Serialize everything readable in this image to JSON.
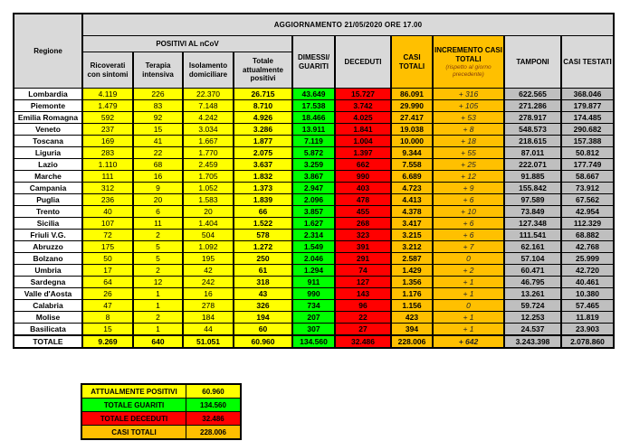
{
  "title": "AGGIORNAMENTO 21/05/2020 ORE 17.00",
  "header": {
    "corner": "Regione",
    "group": "POSITIVI AL nCoV",
    "cols": {
      "ricoverati": "Ricoverati con sintomi",
      "terapia": "Terapia intensiva",
      "isolamento": "Isolamento domiciliare",
      "totale_positivi": "Totale attualmente positivi",
      "dimessi": "DIMESSI/ GUARITI",
      "deceduti": "DECEDUTI",
      "casi_totali": "CASI TOTALI",
      "incremento": "INCREMENTO CASI TOTALI",
      "incremento_note": "(rispetto al giorno precedente)",
      "tamponi": "TAMPONI",
      "casi_testati": "CASI TESTATI"
    }
  },
  "chart_data": {
    "type": "table",
    "title": "AGGIORNAMENTO 21/05/2020 ORE 17.00",
    "columns": [
      "Regione",
      "Ricoverati con sintomi",
      "Terapia intensiva",
      "Isolamento domiciliare",
      "Totale attualmente positivi",
      "DIMESSI/GUARITI",
      "DECEDUTI",
      "CASI TOTALI",
      "INCREMENTO CASI TOTALI (rispetto al giorno precedente)",
      "TAMPONI",
      "CASI TESTATI"
    ],
    "rows": [
      {
        "name": "Lombardia",
        "ricoverati": "4.119",
        "terapia": "226",
        "isolamento": "22.370",
        "totale_positivi": "26.715",
        "dimessi": "43.649",
        "deceduti": "15.727",
        "casi_totali": "86.091",
        "incremento": "+ 316",
        "tamponi": "622.565",
        "casi_testati": "368.046"
      },
      {
        "name": "Piemonte",
        "ricoverati": "1.479",
        "terapia": "83",
        "isolamento": "7.148",
        "totale_positivi": "8.710",
        "dimessi": "17.538",
        "deceduti": "3.742",
        "casi_totali": "29.990",
        "incremento": "+ 105",
        "tamponi": "271.286",
        "casi_testati": "179.877"
      },
      {
        "name": "Emilia Romagna",
        "ricoverati": "592",
        "terapia": "92",
        "isolamento": "4.242",
        "totale_positivi": "4.926",
        "dimessi": "18.466",
        "deceduti": "4.025",
        "casi_totali": "27.417",
        "incremento": "+ 53",
        "tamponi": "278.917",
        "casi_testati": "174.485"
      },
      {
        "name": "Veneto",
        "ricoverati": "237",
        "terapia": "15",
        "isolamento": "3.034",
        "totale_positivi": "3.286",
        "dimessi": "13.911",
        "deceduti": "1.841",
        "casi_totali": "19.038",
        "incremento": "+ 8",
        "tamponi": "548.573",
        "casi_testati": "290.682"
      },
      {
        "name": "Toscana",
        "ricoverati": "169",
        "terapia": "41",
        "isolamento": "1.667",
        "totale_positivi": "1.877",
        "dimessi": "7.119",
        "deceduti": "1.004",
        "casi_totali": "10.000",
        "incremento": "+ 18",
        "tamponi": "218.615",
        "casi_testati": "157.388"
      },
      {
        "name": "Liguria",
        "ricoverati": "283",
        "terapia": "22",
        "isolamento": "1.770",
        "totale_positivi": "2.075",
        "dimessi": "5.872",
        "deceduti": "1.397",
        "casi_totali": "9.344",
        "incremento": "+ 55",
        "tamponi": "87.011",
        "casi_testati": "50.812"
      },
      {
        "name": "Lazio",
        "ricoverati": "1.110",
        "terapia": "68",
        "isolamento": "2.459",
        "totale_positivi": "3.637",
        "dimessi": "3.259",
        "deceduti": "662",
        "casi_totali": "7.558",
        "incremento": "+ 25",
        "tamponi": "222.071",
        "casi_testati": "177.749"
      },
      {
        "name": "Marche",
        "ricoverati": "111",
        "terapia": "16",
        "isolamento": "1.705",
        "totale_positivi": "1.832",
        "dimessi": "3.867",
        "deceduti": "990",
        "casi_totali": "6.689",
        "incremento": "+ 12",
        "tamponi": "91.885",
        "casi_testati": "58.667"
      },
      {
        "name": "Campania",
        "ricoverati": "312",
        "terapia": "9",
        "isolamento": "1.052",
        "totale_positivi": "1.373",
        "dimessi": "2.947",
        "deceduti": "403",
        "casi_totali": "4.723",
        "incremento": "+ 9",
        "tamponi": "155.842",
        "casi_testati": "73.912"
      },
      {
        "name": "Puglia",
        "ricoverati": "236",
        "terapia": "20",
        "isolamento": "1.583",
        "totale_positivi": "1.839",
        "dimessi": "2.096",
        "deceduti": "478",
        "casi_totali": "4.413",
        "incremento": "+ 6",
        "tamponi": "97.589",
        "casi_testati": "67.562"
      },
      {
        "name": "Trento",
        "ricoverati": "40",
        "terapia": "6",
        "isolamento": "20",
        "totale_positivi": "66",
        "dimessi": "3.857",
        "deceduti": "455",
        "casi_totali": "4.378",
        "incremento": "+ 10",
        "tamponi": "73.849",
        "casi_testati": "42.954"
      },
      {
        "name": "Sicilia",
        "ricoverati": "107",
        "terapia": "11",
        "isolamento": "1.404",
        "totale_positivi": "1.522",
        "dimessi": "1.627",
        "deceduti": "268",
        "casi_totali": "3.417",
        "incremento": "+ 6",
        "tamponi": "127.348",
        "casi_testati": "112.329"
      },
      {
        "name": "Friuli V.G.",
        "ricoverati": "72",
        "terapia": "2",
        "isolamento": "504",
        "totale_positivi": "578",
        "dimessi": "2.314",
        "deceduti": "323",
        "casi_totali": "3.215",
        "incremento": "+ 6",
        "tamponi": "111.541",
        "casi_testati": "68.882"
      },
      {
        "name": "Abruzzo",
        "ricoverati": "175",
        "terapia": "5",
        "isolamento": "1.092",
        "totale_positivi": "1.272",
        "dimessi": "1.549",
        "deceduti": "391",
        "casi_totali": "3.212",
        "incremento": "+ 7",
        "tamponi": "62.161",
        "casi_testati": "42.768"
      },
      {
        "name": "Bolzano",
        "ricoverati": "50",
        "terapia": "5",
        "isolamento": "195",
        "totale_positivi": "250",
        "dimessi": "2.046",
        "deceduti": "291",
        "casi_totali": "2.587",
        "incremento": "0",
        "tamponi": "57.104",
        "casi_testati": "25.999"
      },
      {
        "name": "Umbria",
        "ricoverati": "17",
        "terapia": "2",
        "isolamento": "42",
        "totale_positivi": "61",
        "dimessi": "1.294",
        "deceduti": "74",
        "casi_totali": "1.429",
        "incremento": "+ 2",
        "tamponi": "60.471",
        "casi_testati": "42.720"
      },
      {
        "name": "Sardegna",
        "ricoverati": "64",
        "terapia": "12",
        "isolamento": "242",
        "totale_positivi": "318",
        "dimessi": "911",
        "deceduti": "127",
        "casi_totali": "1.356",
        "incremento": "+ 1",
        "tamponi": "46.795",
        "casi_testati": "40.461"
      },
      {
        "name": "Valle d'Aosta",
        "ricoverati": "26",
        "terapia": "1",
        "isolamento": "16",
        "totale_positivi": "43",
        "dimessi": "990",
        "deceduti": "143",
        "casi_totali": "1.176",
        "incremento": "+ 1",
        "tamponi": "13.261",
        "casi_testati": "10.380"
      },
      {
        "name": "Calabria",
        "ricoverati": "47",
        "terapia": "1",
        "isolamento": "278",
        "totale_positivi": "326",
        "dimessi": "734",
        "deceduti": "96",
        "casi_totali": "1.156",
        "incremento": "0",
        "tamponi": "59.724",
        "casi_testati": "57.465"
      },
      {
        "name": "Molise",
        "ricoverati": "8",
        "terapia": "2",
        "isolamento": "184",
        "totale_positivi": "194",
        "dimessi": "207",
        "deceduti": "22",
        "casi_totali": "423",
        "incremento": "+ 1",
        "tamponi": "12.253",
        "casi_testati": "11.819"
      },
      {
        "name": "Basilicata",
        "ricoverati": "15",
        "terapia": "1",
        "isolamento": "44",
        "totale_positivi": "60",
        "dimessi": "307",
        "deceduti": "27",
        "casi_totali": "394",
        "incremento": "+ 1",
        "tamponi": "24.537",
        "casi_testati": "23.903"
      }
    ],
    "total_row": {
      "name": "TOTALE",
      "ricoverati": "9.269",
      "terapia": "640",
      "isolamento": "51.051",
      "totale_positivi": "60.960",
      "dimessi": "134.560",
      "deceduti": "32.486",
      "casi_totali": "228.006",
      "incremento": "+ 642",
      "tamponi": "3.243.398",
      "casi_testati": "2.078.860"
    }
  },
  "summary": {
    "rows": [
      {
        "label": "ATTUALMENTE POSITIVI",
        "value": "60.960",
        "color": "#ffff00"
      },
      {
        "label": "TOTALE GUARITI",
        "value": "134.560",
        "color": "#00ff00"
      },
      {
        "label": "TOTALE DECEDUTI",
        "value": "32.486",
        "color": "#ff0000"
      },
      {
        "label": "CASI TOTALI",
        "value": "228.006",
        "color": "#ffc000"
      }
    ]
  },
  "colors": {
    "yellow": "#ffff00",
    "green": "#00ff00",
    "red": "#ff0000",
    "orange": "#ffc000",
    "header_gray": "#d9d9d9",
    "data_gray": "#bfbfbf",
    "note_text": "#843c0c",
    "border": "#000000"
  }
}
